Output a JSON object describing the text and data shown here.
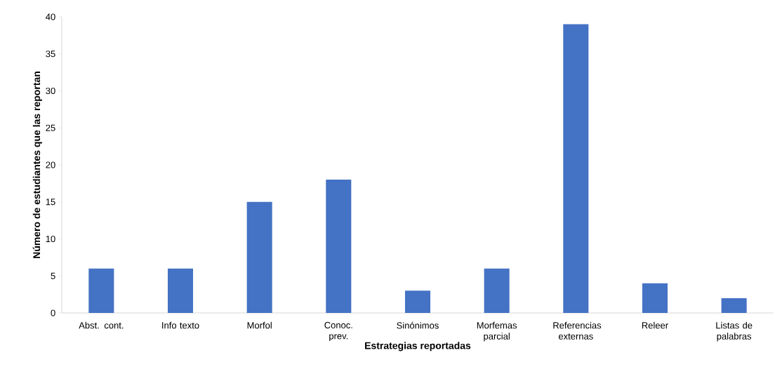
{
  "chart_data": {
    "type": "bar",
    "xlabel": "Estrategias reportadas",
    "ylabel": "Número de estudiantes que las reportan",
    "categories": [
      "Abst. cont.",
      "Info texto",
      "Morfol",
      "Conoc. prev.",
      "Sinónimos",
      "Morfemas parcial",
      "Referencias externas",
      "Releer",
      "Listas de palabras"
    ],
    "values": [
      6,
      6,
      15,
      18,
      3,
      6,
      39,
      4,
      2
    ],
    "color": "#4472c4",
    "ylim": [
      0,
      40
    ],
    "yticks": [
      0,
      5,
      10,
      15,
      20,
      25,
      30,
      35,
      40
    ]
  }
}
